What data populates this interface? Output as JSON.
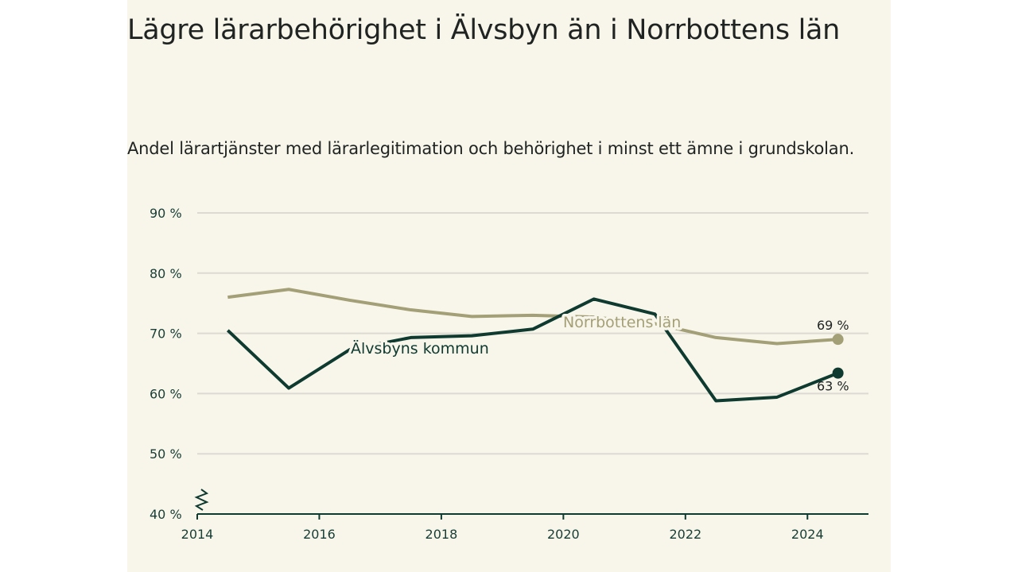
{
  "header": {
    "title": "Lägre lärarbehörighet i Älvsbyn än i Norrbottens län",
    "subtitle": "Andel lärartjänster med lärarlegitimation och behörighet i minst ett ämne i grundskolan."
  },
  "colors": {
    "background": "#f8f6ea",
    "alvsbyn": "#0f3a30",
    "norrbotten": "#a39f76",
    "grid": "#dcdad2"
  },
  "chart_data": {
    "type": "line",
    "title": "Lägre lärarbehörighet i Älvsbyn än i Norrbottens län",
    "subtitle": "Andel lärartjänster med lärarlegitimation och behörighet i minst ett ämne i grundskolan.",
    "x": [
      2014.5,
      2015.5,
      2016.5,
      2017.5,
      2018.5,
      2019.5,
      2020.5,
      2021.5,
      2022.5,
      2023.5,
      2024.5
    ],
    "xlim": [
      2014,
      2025
    ],
    "ylim": [
      40,
      90
    ],
    "x_ticks": [
      2014,
      2016,
      2018,
      2020,
      2022,
      2024
    ],
    "x_tick_labels": [
      "2014",
      "2016",
      "2018",
      "2020",
      "2022",
      "2024"
    ],
    "y_ticks": [
      40,
      50,
      60,
      70,
      80,
      90
    ],
    "y_tick_labels": [
      "40 %",
      "50 %",
      "60 %",
      "70 %",
      "80 %",
      "90 %"
    ],
    "y_axis_break": true,
    "grid": "horizontal",
    "series": [
      {
        "name": "Norrbottens län",
        "values": [
          76.0,
          77.3,
          75.5,
          73.9,
          72.8,
          73.0,
          72.7,
          71.6,
          69.3,
          68.3,
          69.0
        ],
        "end_label": "69 %"
      },
      {
        "name": "Älvsbyns kommun",
        "values": [
          70.5,
          60.9,
          67.3,
          69.3,
          69.6,
          70.7,
          75.7,
          73.2,
          58.8,
          59.4,
          63.4
        ],
        "end_label": "63 %"
      }
    ]
  }
}
